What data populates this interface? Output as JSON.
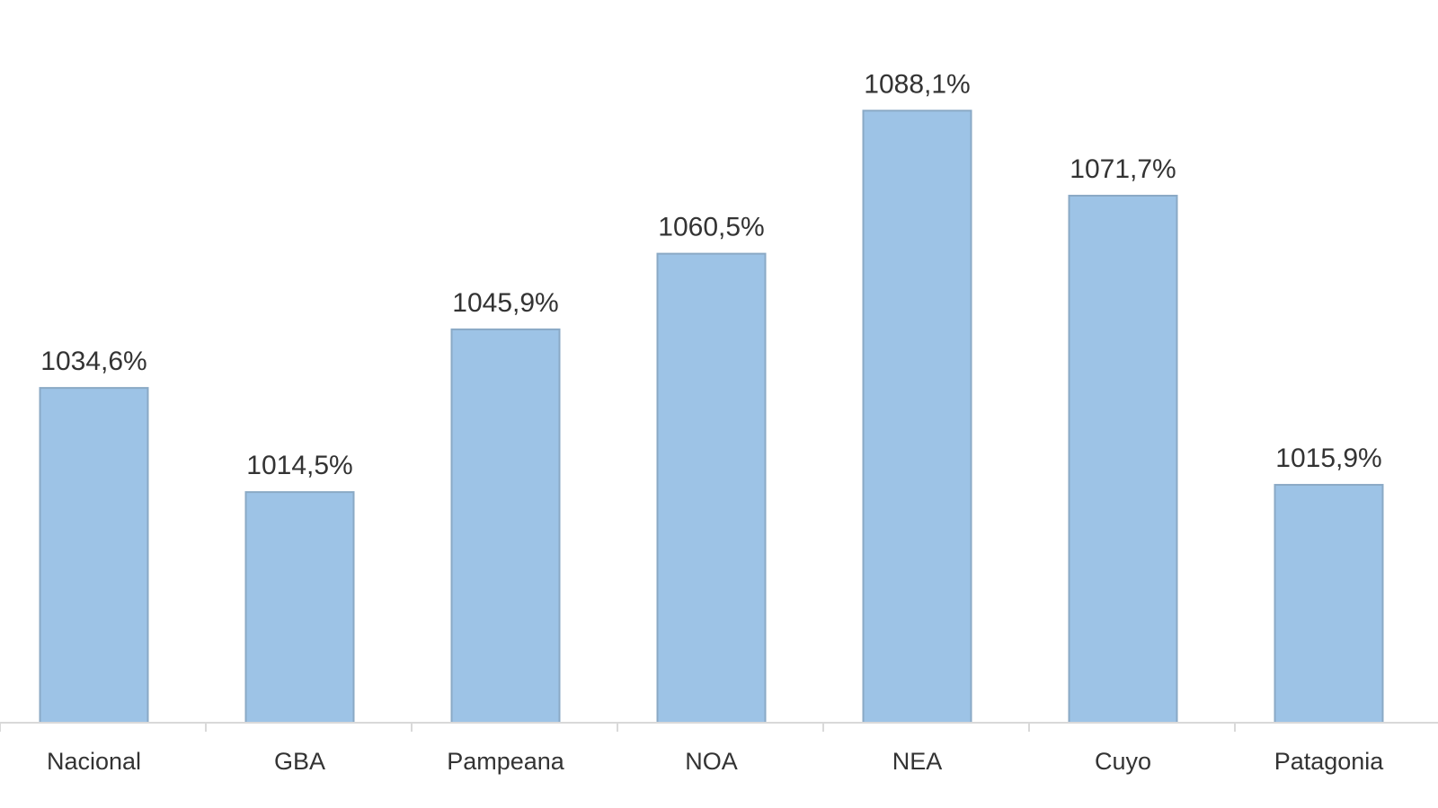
{
  "chart_data": {
    "type": "bar",
    "categories": [
      "Nacional",
      "GBA",
      "Pampeana",
      "NOA",
      "NEA",
      "Cuyo",
      "Patagonia"
    ],
    "values": [
      1034.6,
      1014.5,
      1045.9,
      1060.5,
      1088.1,
      1071.7,
      1015.9
    ],
    "data_labels": [
      "1034,6%",
      "1014,5%",
      "1045,9%",
      "1060,5%",
      "1088,1%",
      "1071,7%",
      "1015,9%"
    ],
    "ylim": [
      970,
      1093
    ],
    "grid": false,
    "legend": "none",
    "colors": {
      "bar_fill": "#9dc3e6",
      "bar_stroke": "#8aa9c5",
      "axis": "#d9d9d9",
      "text": "#333333"
    }
  }
}
